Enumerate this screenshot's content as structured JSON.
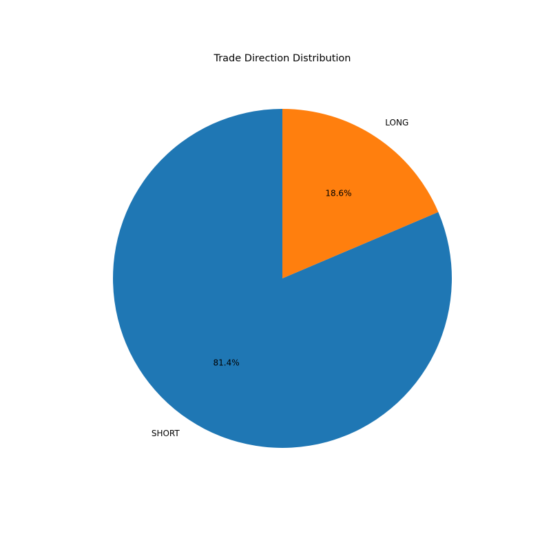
{
  "chart_data": {
    "type": "pie",
    "title": "Trade Direction Distribution",
    "start_angle_deg": 90,
    "direction": "counterclockwise",
    "slices": [
      {
        "label": "SHORT",
        "value": 81.4,
        "pct_label": "81.4%",
        "color": "#1f77b4"
      },
      {
        "label": "LONG",
        "value": 18.6,
        "pct_label": "18.6%",
        "color": "#ff7f0e"
      }
    ]
  }
}
